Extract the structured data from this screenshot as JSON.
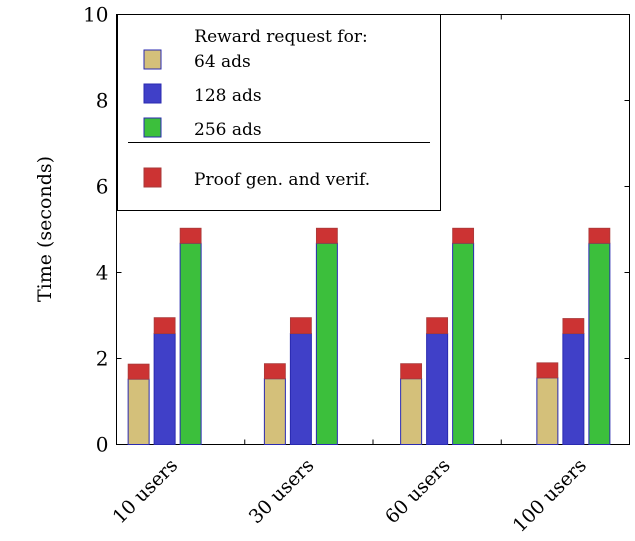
{
  "chart_data": {
    "type": "bar",
    "stacked": true,
    "ylabel": "Time (seconds)",
    "xlabel": "",
    "ylim": [
      0,
      10
    ],
    "yticks": [
      "0",
      "2",
      "4",
      "6",
      "8",
      "10"
    ],
    "categories": [
      "10 users",
      "30 users",
      "60 users",
      "100 users"
    ],
    "series": [
      {
        "name": "64 ads",
        "color": "#d4c07a",
        "base": [
          1.52,
          1.53,
          1.53,
          1.55
        ],
        "overhead": [
          0.35,
          0.35,
          0.35,
          0.35
        ]
      },
      {
        "name": "128 ads",
        "color": "#4040c8",
        "base": [
          2.58,
          2.58,
          2.58,
          2.58
        ],
        "overhead": [
          0.37,
          0.37,
          0.37,
          0.35
        ]
      },
      {
        "name": "256 ads",
        "color": "#3cbf3c",
        "base": [
          4.68,
          4.68,
          4.68,
          4.68
        ],
        "overhead": [
          0.35,
          0.35,
          0.35,
          0.35
        ]
      }
    ],
    "overhead_series": {
      "name": "Proof gen. and verif.",
      "color": "#cc3333"
    },
    "legend": {
      "title": "Reward request for:",
      "placement": "top-left"
    },
    "grid": false
  }
}
